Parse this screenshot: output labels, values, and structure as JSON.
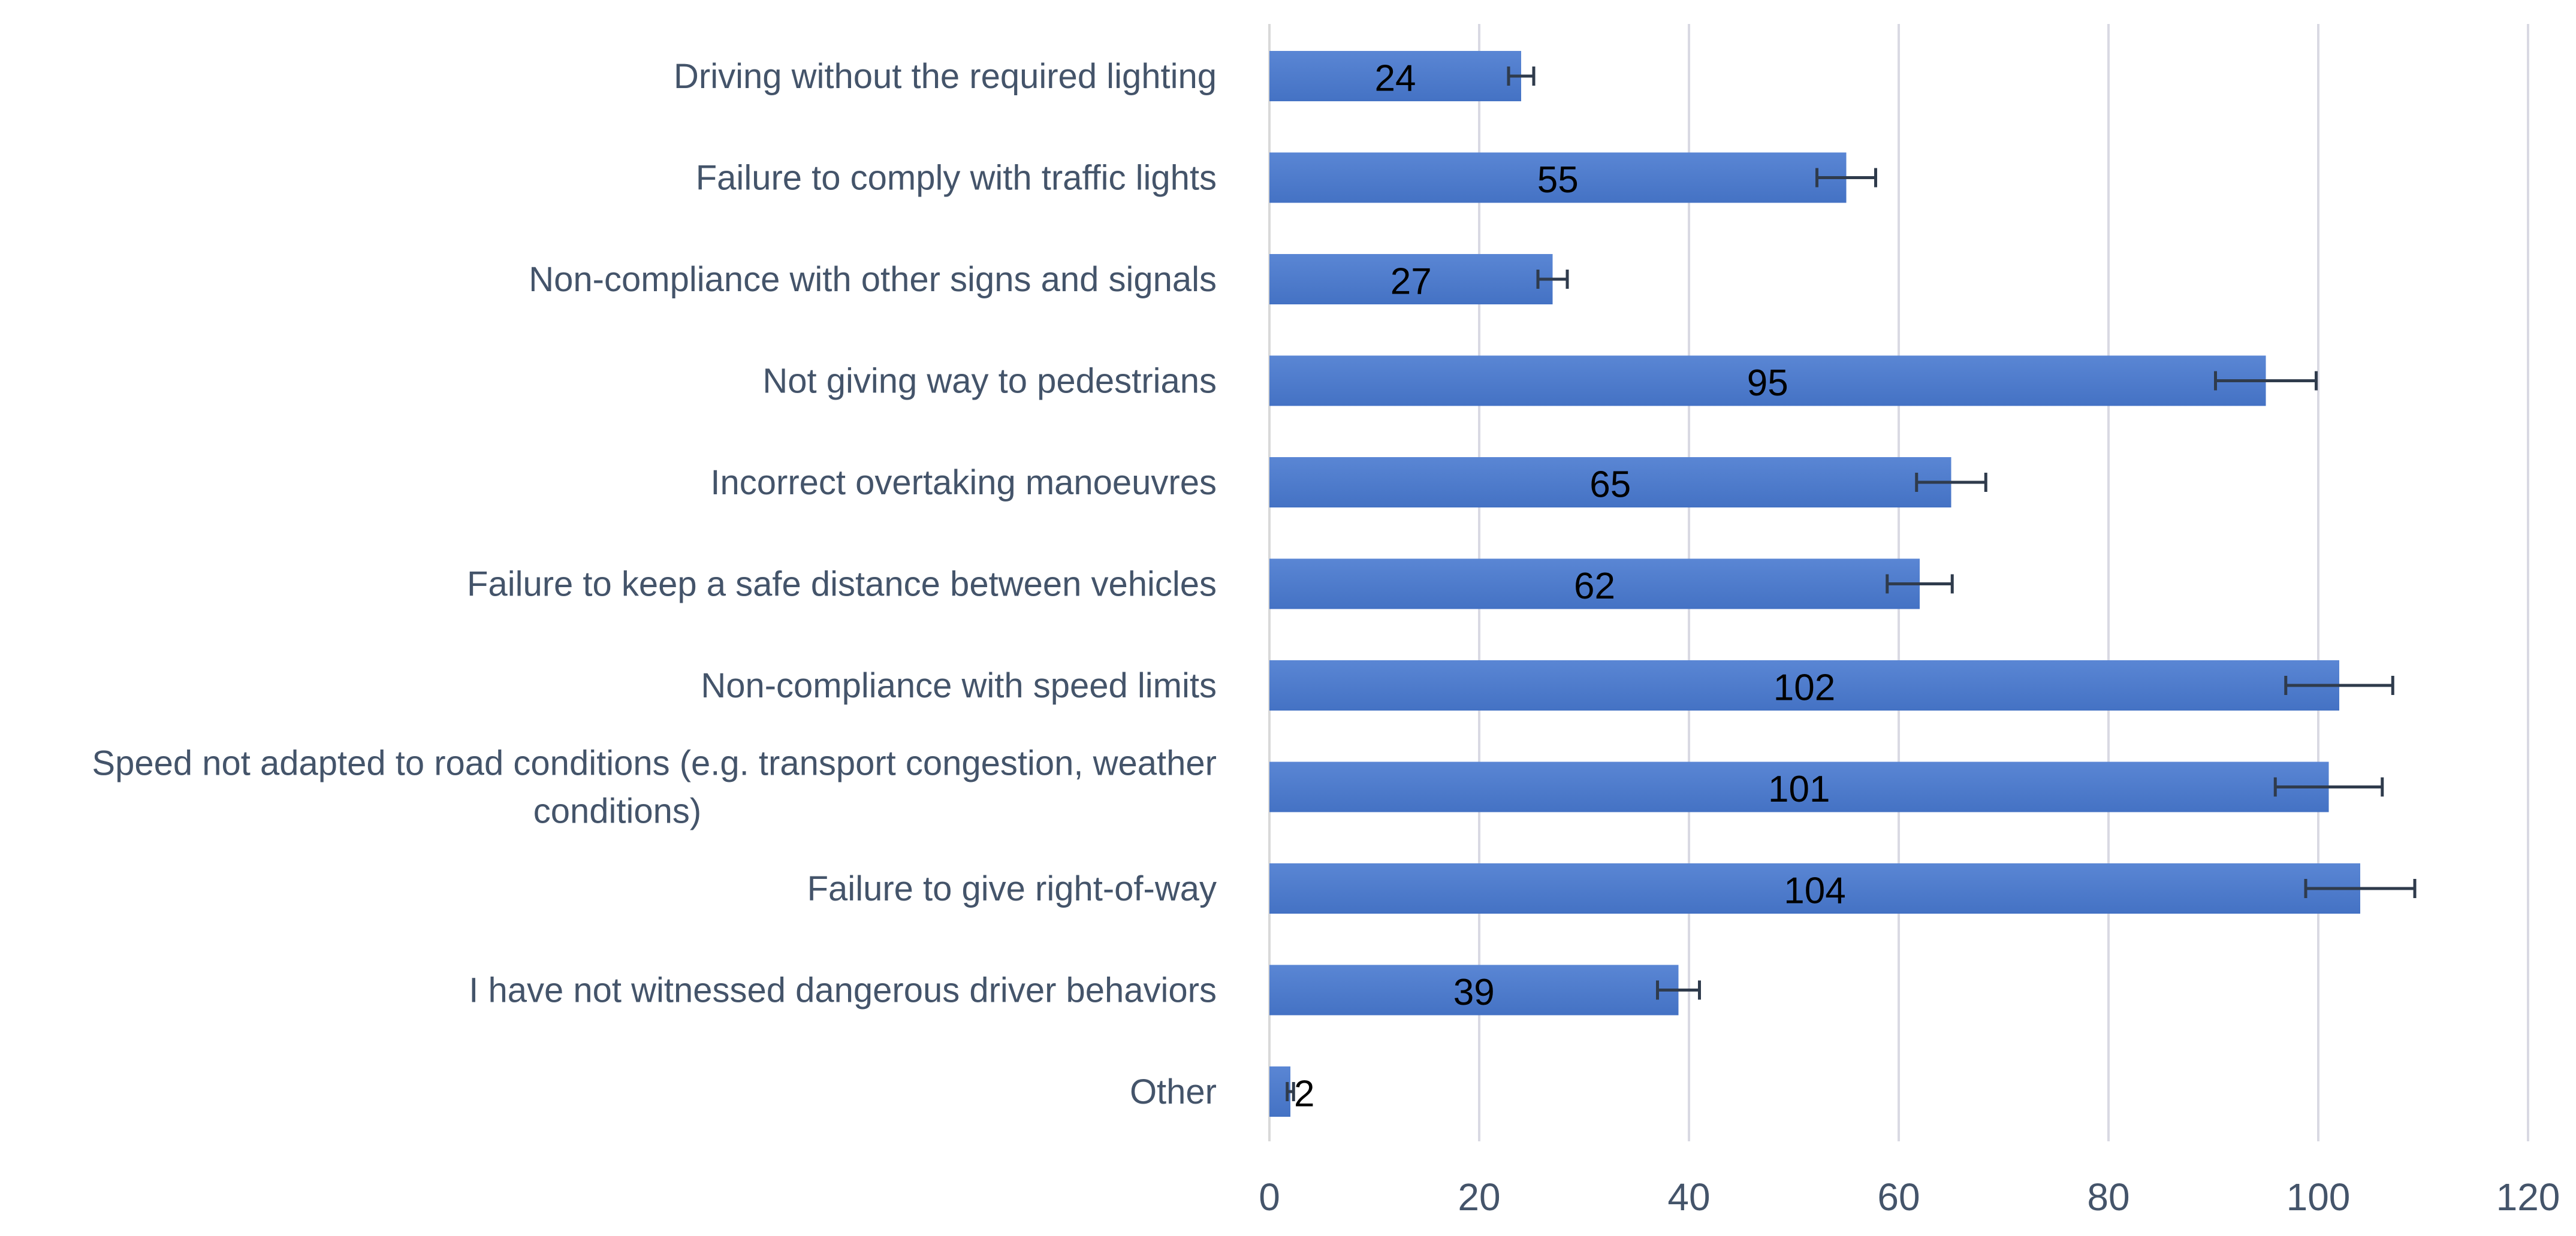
{
  "chart_data": {
    "type": "bar",
    "orientation": "horizontal",
    "title": "",
    "xlabel": "",
    "ylabel": "",
    "categories": [
      "Driving without the required lighting",
      "Failure to comply with traffic lights",
      "Non-compliance with other signs and signals",
      "Not giving way to pedestrians",
      "Incorrect overtaking manoeuvres",
      "Failure to keep a safe distance between vehicles",
      "Non-compliance with speed limits",
      "Speed not adapted to road conditions (e.g. transport congestion, weather conditions)",
      "Failure to give right-of-way",
      "I have not witnessed dangerous driver behaviors",
      "Other"
    ],
    "category_label_lines": [
      [
        "Driving without the required lighting"
      ],
      [
        "Failure to comply with traffic lights"
      ],
      [
        "Non-compliance with other signs and signals"
      ],
      [
        "Not giving way to pedestrians"
      ],
      [
        "Incorrect overtaking manoeuvres"
      ],
      [
        "Failure to keep a safe distance between vehicles"
      ],
      [
        "Non-compliance with speed limits"
      ],
      [
        "Speed not adapted to road conditions (e.g. transport congestion, weather",
        "conditions)"
      ],
      [
        "Failure to give right-of-way"
      ],
      [
        "I have not witnessed dangerous driver behaviors"
      ],
      [
        "Other"
      ]
    ],
    "values": [
      24,
      55,
      27,
      95,
      65,
      62,
      102,
      101,
      104,
      39,
      2
    ],
    "error": [
      1.2,
      2.8,
      1.4,
      4.8,
      3.3,
      3.1,
      5.1,
      5.1,
      5.2,
      2.0,
      0.3
    ],
    "xlim": [
      0,
      120
    ],
    "xticks": [
      0,
      20,
      40,
      60,
      80,
      100,
      120
    ],
    "grid": true,
    "legend": "none",
    "colors": {
      "bar": "#4472c4",
      "bar_light": "#5a86d4",
      "grid": "#d9d9e3",
      "axis": "#d9d9d9",
      "error_bar": "#2f3b4c"
    }
  }
}
